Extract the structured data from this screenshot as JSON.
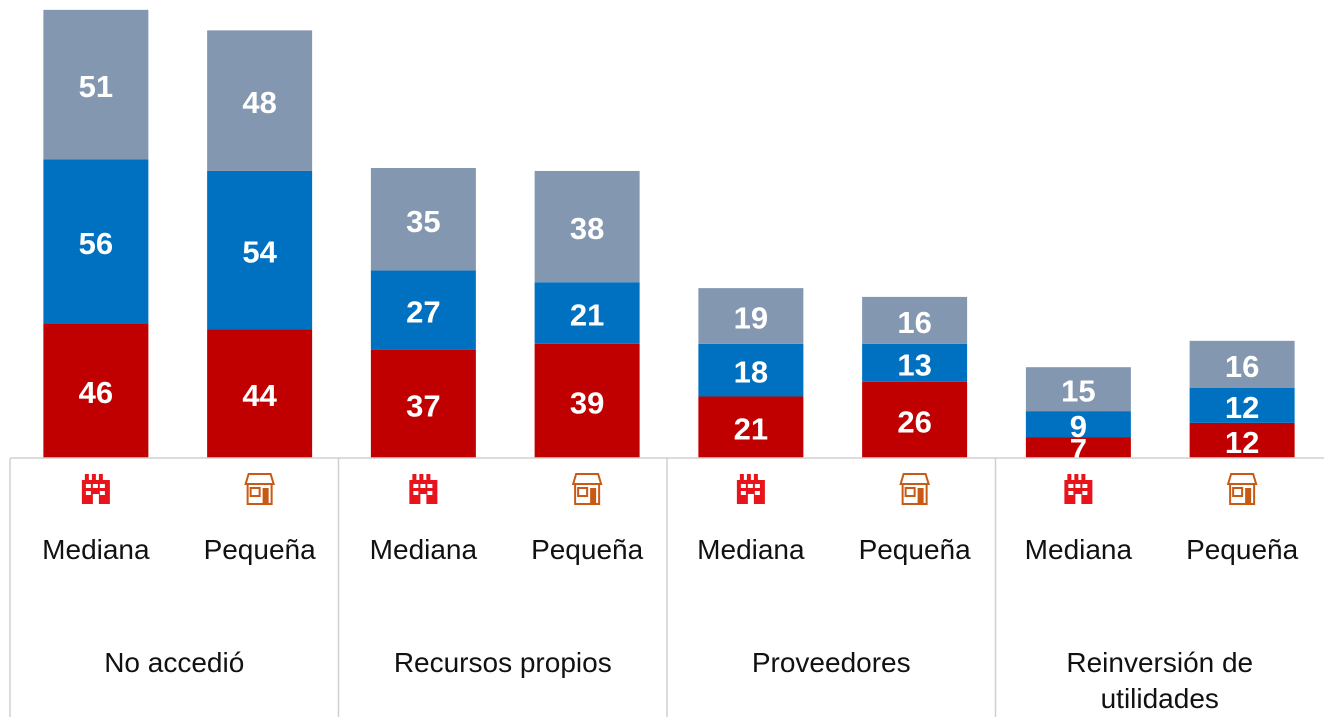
{
  "chart_data": {
    "type": "stacked_bar",
    "groups": [
      "No accedió",
      "Recursos propios",
      "Proveedores",
      "Reinversión de utilidades"
    ],
    "categories": [
      "Mediana",
      "Pequeña",
      "Mediana",
      "Pequeña",
      "Mediana",
      "Pequeña",
      "Mediana",
      "Pequeña"
    ],
    "series": [
      {
        "color": "#c00000",
        "values": [
          46,
          44,
          37,
          39,
          21,
          26,
          7,
          12
        ]
      },
      {
        "color": "#0070c0",
        "values": [
          56,
          54,
          27,
          21,
          18,
          13,
          9,
          12
        ]
      },
      {
        "color": "#8497b0",
        "values": [
          51,
          48,
          35,
          38,
          19,
          16,
          15,
          16
        ]
      }
    ],
    "ylim": [
      0,
      155
    ]
  }
}
